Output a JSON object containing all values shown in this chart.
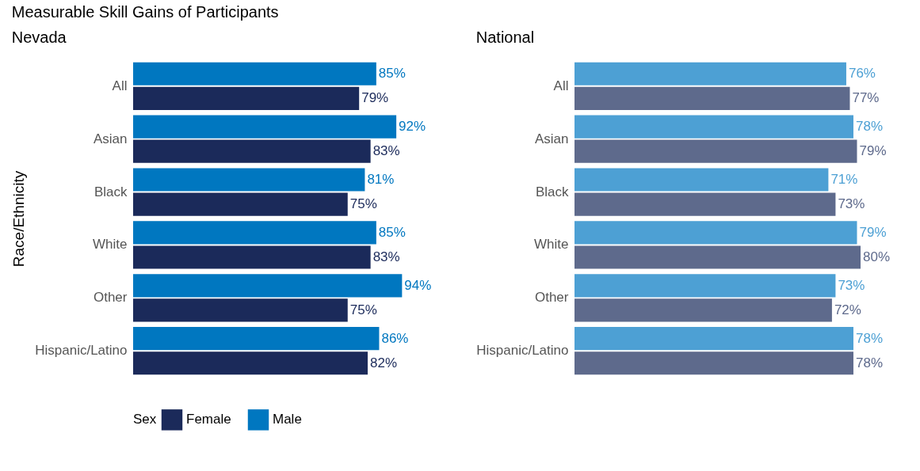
{
  "chart_data": [
    {
      "type": "bar",
      "orientation": "horizontal",
      "title": "Measurable Skill Gains of Participants",
      "subtitle": "Nevada",
      "ylabel": "Race/Ethnicity",
      "legend_title": "Sex",
      "legend": "bottom",
      "tick_labels": "y",
      "categories": [
        "All",
        "Asian",
        "Black",
        "White",
        "Other",
        "Hispanic/Latino"
      ],
      "series": [
        {
          "name": "Female",
          "color": "#1b2a5a",
          "values": [
            79,
            83,
            75,
            83,
            75,
            82
          ],
          "value_labels": [
            "79%",
            "83%",
            "75%",
            "83%",
            "75%",
            "82%"
          ]
        },
        {
          "name": "Male",
          "color": "#0077c0",
          "values": [
            85,
            92,
            81,
            85,
            94,
            86
          ],
          "value_labels": [
            "85%",
            "92%",
            "81%",
            "85%",
            "94%",
            "86%"
          ]
        }
      ]
    },
    {
      "type": "bar",
      "orientation": "horizontal",
      "subtitle": "National",
      "tick_labels": "y",
      "categories": [
        "All",
        "Asian",
        "Black",
        "White",
        "Other",
        "Hispanic/Latino"
      ],
      "series": [
        {
          "color": "#5e6a8c",
          "values": [
            77,
            79,
            73,
            80,
            72,
            78
          ],
          "value_labels": [
            "77%",
            "79%",
            "73%",
            "80%",
            "72%",
            "78%"
          ]
        },
        {
          "color": "#4da0d4",
          "values": [
            76,
            78,
            71,
            79,
            73,
            78
          ],
          "value_labels": [
            "76%",
            "78%",
            "71%",
            "79%",
            "73%",
            "78%"
          ]
        }
      ]
    }
  ]
}
